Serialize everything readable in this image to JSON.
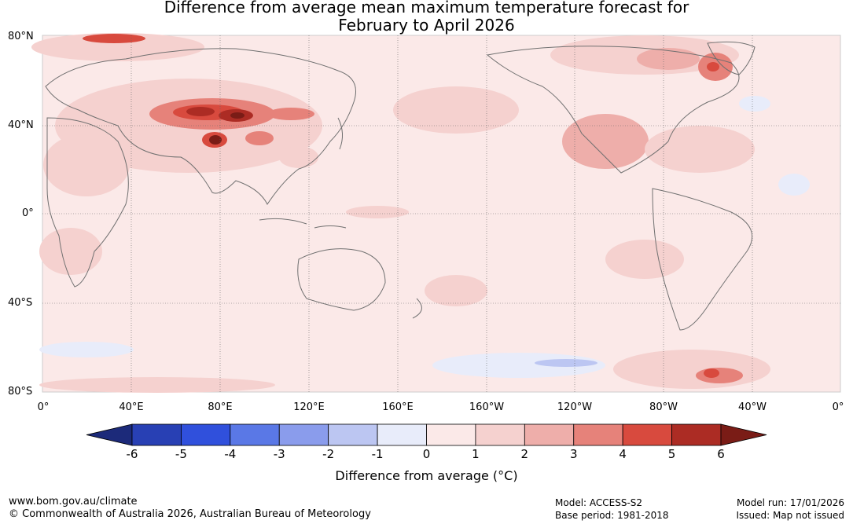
{
  "header": {
    "title_line1": "Difference from average mean maximum temperature forecast for",
    "title_line2": "February to April 2026"
  },
  "map": {
    "lat_labels": [
      "80°N",
      "40°N",
      "0°",
      "40°S",
      "80°S"
    ],
    "lon_labels": [
      "0°",
      "40°E",
      "80°E",
      "120°E",
      "160°E",
      "160°W",
      "120°W",
      "80°W",
      "40°W",
      "0°"
    ],
    "regions": [
      {
        "name": "central-asia-anomaly",
        "value": 4
      },
      {
        "name": "north-america-anomaly",
        "value": 2
      },
      {
        "name": "greenland-anomaly",
        "value": 3
      },
      {
        "name": "antarctic-peninsula-anomaly",
        "value": 3
      },
      {
        "name": "antarctic-cool-anomaly",
        "value": -1
      }
    ]
  },
  "colorbar": {
    "ticks": [
      "-6",
      "-5",
      "-4",
      "-3",
      "-2",
      "-1",
      "0",
      "1",
      "2",
      "3",
      "4",
      "5",
      "6"
    ],
    "colors": [
      "#1c2a7a",
      "#2840b4",
      "#3050dc",
      "#5a78e6",
      "#8a9cec",
      "#bcc6f2",
      "#e8ecfa",
      "#fbe9e8",
      "#f5d1cf",
      "#eeaeaa",
      "#e6827a",
      "#d84a3e",
      "#ac2c24",
      "#7a1c16"
    ],
    "title": "Difference from average (°C)"
  },
  "footer": {
    "url": "www.bom.gov.au/climate",
    "copyright": "© Commonwealth of Australia 2026, Australian Bureau of Meteorology",
    "model": "Model: ACCESS-S2",
    "base_period": "Base period: 1981-2018",
    "model_run": "Model run: 17/01/2026",
    "issued": "Issued: Map not issued"
  }
}
